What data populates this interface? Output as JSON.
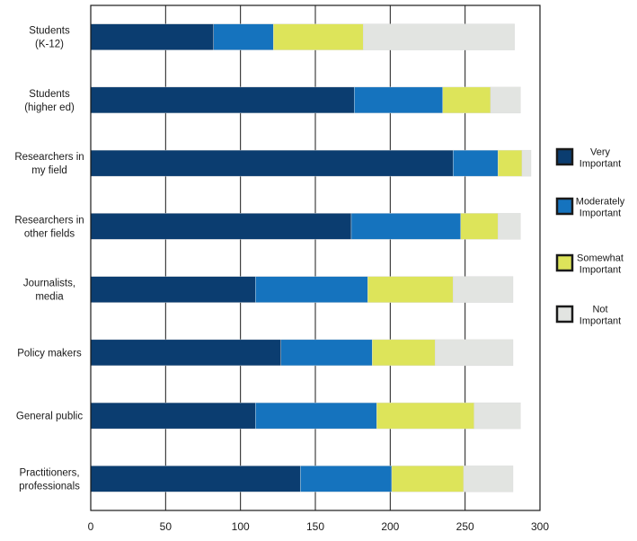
{
  "chart_data": {
    "type": "bar",
    "orientation": "horizontal",
    "stacked": true,
    "title": "",
    "xlabel": "",
    "ylabel": "",
    "xlim": [
      0,
      300
    ],
    "x_ticks": [
      0,
      50,
      100,
      150,
      200,
      250,
      300
    ],
    "grid": "vertical",
    "legend_position": "right",
    "categories": [
      [
        "Students",
        "(K-12)"
      ],
      [
        "Students",
        "(higher ed)"
      ],
      [
        "Researchers in",
        "my field"
      ],
      [
        "Researchers in",
        "other fields"
      ],
      [
        "Journalists,",
        "media"
      ],
      [
        "Policy makers"
      ],
      [
        "General public"
      ],
      [
        "Practitioners,",
        "professionals"
      ]
    ],
    "series": [
      {
        "name": [
          "Very",
          "Important"
        ],
        "color": "#0b3d70",
        "values": [
          82,
          176,
          242,
          174,
          110,
          127,
          110,
          140
        ]
      },
      {
        "name": [
          "Moderately",
          "Important"
        ],
        "color": "#1573be",
        "values": [
          40,
          59,
          30,
          73,
          75,
          61,
          81,
          61
        ]
      },
      {
        "name": [
          "Somewhat",
          "Important"
        ],
        "color": "#dde45a",
        "values": [
          60,
          32,
          16,
          25,
          57,
          42,
          65,
          48
        ]
      },
      {
        "name": [
          "Not",
          "Important"
        ],
        "color": "#e2e4e1",
        "values": [
          101,
          20,
          6,
          15,
          40,
          52,
          31,
          33
        ]
      }
    ]
  }
}
